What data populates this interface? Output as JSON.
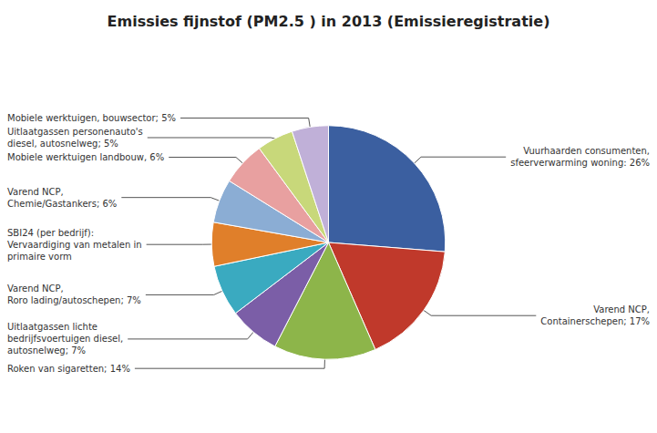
{
  "chart_data": {
    "type": "pie",
    "title": "Emissies fijnstof (PM2.5 ) in 2013 (Emissieregistratie)",
    "categories": [
      "Vuurhaarden consumenten,\nsfeerverwarming woning: 26%",
      "Varend NCP,\nContainerschepen; 17%",
      "Roken van sigaretten; 14%",
      "Uitlaatgassen lichte\nbedrijfsvoertuigen diesel,\nautosnelweg; 7%",
      "Varend NCP,\nRoro lading/autoschepen; 7%",
      "SBI24 (per bedrijf):\nVervaardiging van metalen in\nprimaire vorm",
      "Varend NCP,\nChemie/Gastankers; 6%",
      "Mobiele werktuigen landbouw, 6%",
      "Uitlaatgassen personenauto's\ndiesel, autosnelweg; 5%",
      "Mobiele werktuigen, bouwsector; 5%"
    ],
    "values": [
      26,
      17,
      14,
      7,
      7,
      6,
      6,
      6,
      5,
      5
    ],
    "colors": [
      "#3b5fa0",
      "#c0392b",
      "#8db54a",
      "#7b5ea7",
      "#3aaac0",
      "#e07f2a",
      "#8badd4",
      "#e8a0a0",
      "#c8d87a",
      "#c0b0d8"
    ]
  }
}
